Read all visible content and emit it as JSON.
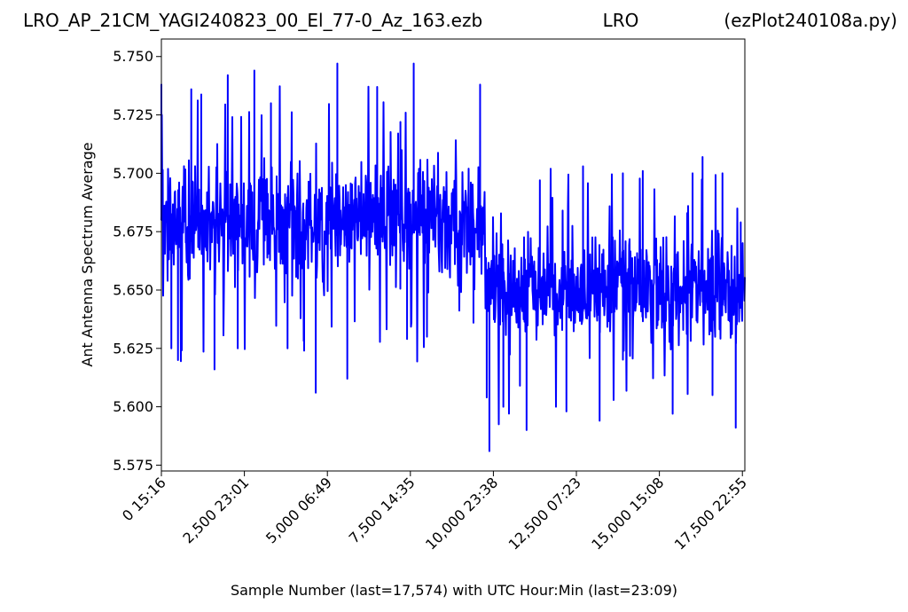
{
  "header": {
    "filename": "LRO_AP_21CM_YAGI240823_00_El_77-0_Az_163.ezb",
    "site": "LRO",
    "script": "(ezPlot240108a.py)"
  },
  "chart_data": {
    "type": "line",
    "xlabel": "Sample Number (last=17,574) with UTC Hour:Min (last=23:09)",
    "ylabel": "Ant Antenna Spectrum Average",
    "xlim": [
      0,
      17574
    ],
    "ylim": [
      5.5725,
      5.7575
    ],
    "grid": false,
    "x_ticks": [
      {
        "value": 0,
        "label": "0  15:16"
      },
      {
        "value": 2500,
        "label": "2,500  23:01"
      },
      {
        "value": 5000,
        "label": "5,000  06:49"
      },
      {
        "value": 7500,
        "label": "7,500  14:35"
      },
      {
        "value": 10000,
        "label": "10,000  23:38"
      },
      {
        "value": 12500,
        "label": "12,500  07:23"
      },
      {
        "value": 15000,
        "label": "15,000  15:08"
      },
      {
        "value": 17500,
        "label": "17,500  22:55"
      }
    ],
    "y_ticks": [
      {
        "value": 5.575,
        "label": "5.575"
      },
      {
        "value": 5.6,
        "label": "5.600"
      },
      {
        "value": 5.625,
        "label": "5.625"
      },
      {
        "value": 5.65,
        "label": "5.650"
      },
      {
        "value": 5.675,
        "label": "5.675"
      },
      {
        "value": 5.7,
        "label": "5.700"
      },
      {
        "value": 5.725,
        "label": "5.725"
      },
      {
        "value": 5.75,
        "label": "5.750"
      }
    ],
    "series": [
      {
        "color": "#0000ff",
        "segments": [
          {
            "x_start": 0,
            "x_end": 9750,
            "typical_low": 5.648,
            "typical_high": 5.712,
            "min": 5.606,
            "max": 5.747
          },
          {
            "x_start": 9750,
            "x_end": 17574,
            "typical_low": 5.622,
            "typical_high": 5.68,
            "min": 5.581,
            "max": 5.71
          }
        ],
        "spikes": [
          {
            "x": 0,
            "y": 5.738
          },
          {
            "x": 300,
            "y": 5.625
          },
          {
            "x": 500,
            "y": 5.62
          },
          {
            "x": 900,
            "y": 5.736
          },
          {
            "x": 1200,
            "y": 5.724
          },
          {
            "x": 1600,
            "y": 5.616
          },
          {
            "x": 2000,
            "y": 5.742
          },
          {
            "x": 2300,
            "y": 5.625
          },
          {
            "x": 2800,
            "y": 5.744
          },
          {
            "x": 3300,
            "y": 5.73
          },
          {
            "x": 3800,
            "y": 5.625
          },
          {
            "x": 4300,
            "y": 5.624
          },
          {
            "x": 4650,
            "y": 5.606
          },
          {
            "x": 5300,
            "y": 5.747
          },
          {
            "x": 5600,
            "y": 5.612
          },
          {
            "x": 6500,
            "y": 5.737
          },
          {
            "x": 7200,
            "y": 5.722
          },
          {
            "x": 7400,
            "y": 5.629
          },
          {
            "x": 7600,
            "y": 5.747
          },
          {
            "x": 8000,
            "y": 5.63
          },
          {
            "x": 9400,
            "y": 5.636
          },
          {
            "x": 9600,
            "y": 5.738
          },
          {
            "x": 9800,
            "y": 5.604
          },
          {
            "x": 9880,
            "y": 5.581
          },
          {
            "x": 10300,
            "y": 5.6
          },
          {
            "x": 10800,
            "y": 5.609
          },
          {
            "x": 11000,
            "y": 5.59
          },
          {
            "x": 11400,
            "y": 5.697
          },
          {
            "x": 12200,
            "y": 5.598
          },
          {
            "x": 12700,
            "y": 5.703
          },
          {
            "x": 13200,
            "y": 5.594
          },
          {
            "x": 13900,
            "y": 5.7
          },
          {
            "x": 14500,
            "y": 5.701
          },
          {
            "x": 15400,
            "y": 5.597
          },
          {
            "x": 16000,
            "y": 5.7
          },
          {
            "x": 16300,
            "y": 5.707
          },
          {
            "x": 16600,
            "y": 5.605
          },
          {
            "x": 16900,
            "y": 5.7
          },
          {
            "x": 17300,
            "y": 5.591
          },
          {
            "x": 17450,
            "y": 5.679
          }
        ]
      }
    ]
  }
}
